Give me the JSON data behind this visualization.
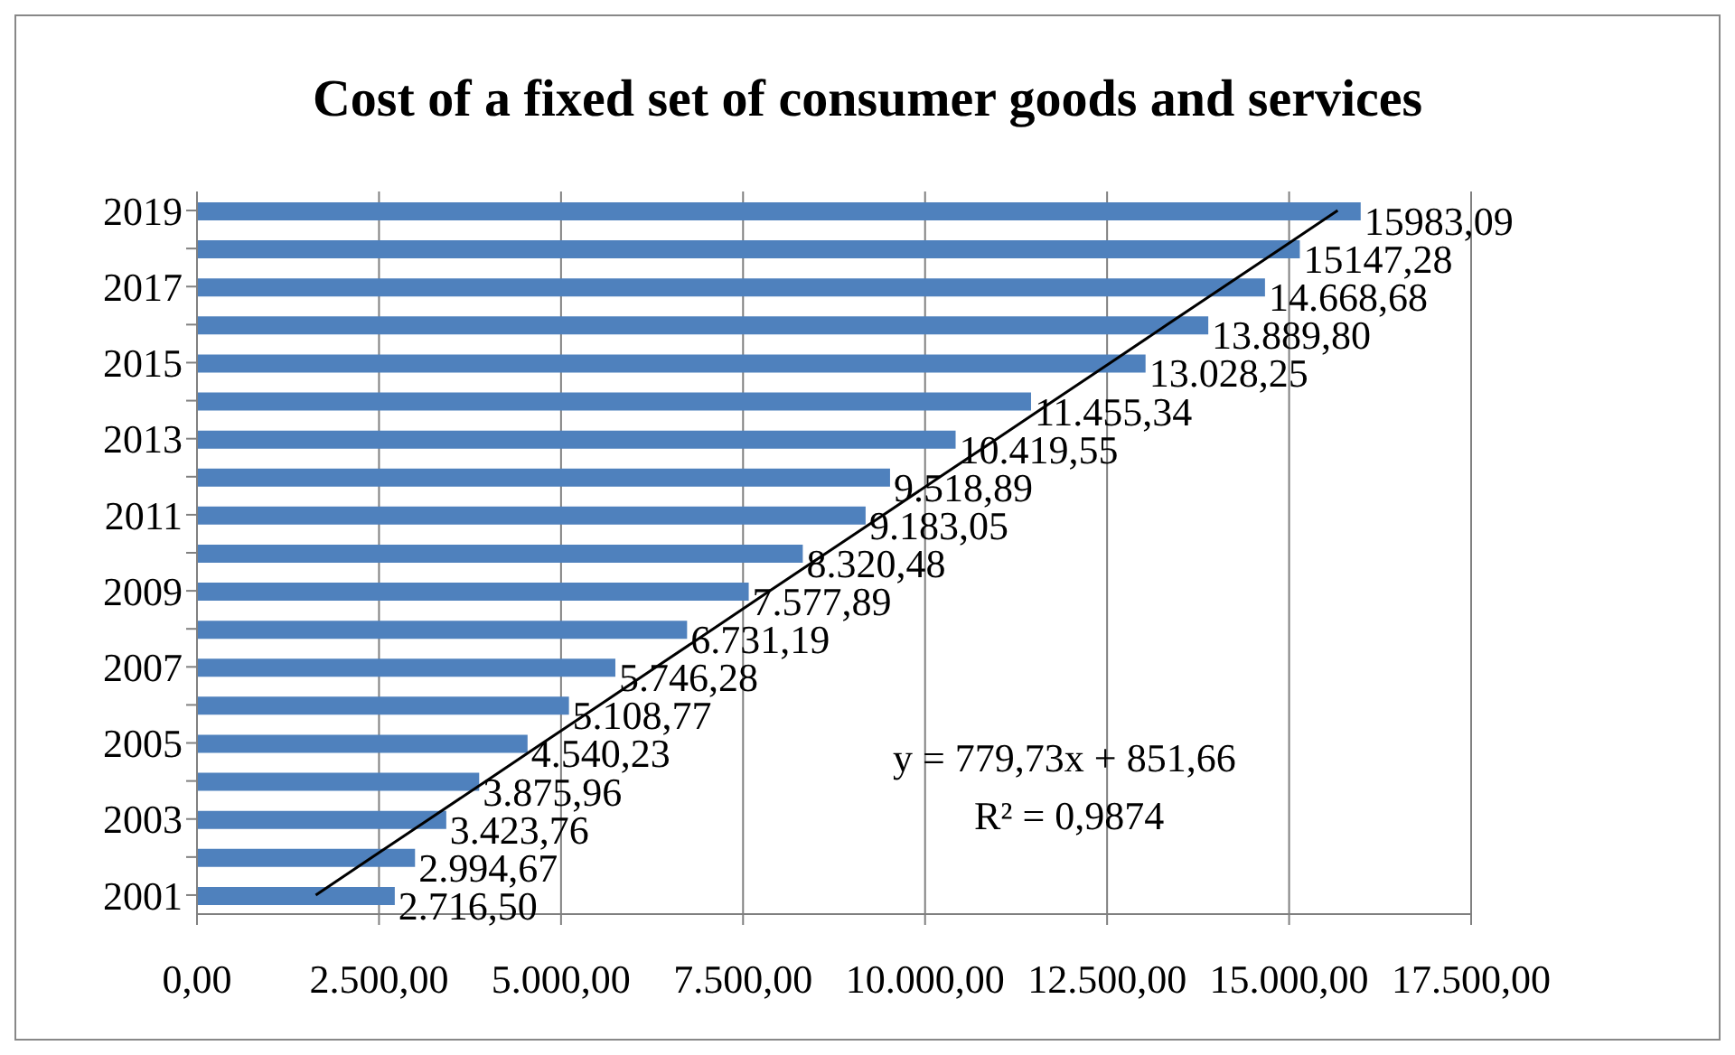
{
  "chart_data": {
    "type": "bar",
    "orientation": "horizontal",
    "title": "Cost of a fixed set of consumer goods and services",
    "categories": [
      "2019",
      null,
      "2017",
      null,
      "2015",
      null,
      "2013",
      null,
      "2011",
      null,
      "2009",
      null,
      "2007",
      null,
      "2005",
      null,
      "2003",
      null,
      "2001"
    ],
    "series": [
      {
        "color": "#4f81bd",
        "values": [
          15983.09,
          15147.28,
          14668.68,
          13889.8,
          13028.25,
          11455.34,
          10419.55,
          9518.89,
          9183.05,
          8320.48,
          7577.89,
          6731.19,
          5746.28,
          5108.77,
          4540.23,
          3875.96,
          3423.76,
          2994.67,
          2716.5
        ],
        "value_labels": [
          "15983,09",
          "15147,28",
          "14.668,68",
          "13.889,80",
          "13.028,25",
          "11.455,34",
          "10.419,55",
          "9.518,89",
          "9.183,05",
          "8.320,48",
          "7.577,89",
          "6.731,19",
          "5.746,28",
          "5.108,77",
          "4.540,23",
          "3.875,96",
          "3.423,76",
          "2.994,67",
          "2.716,50"
        ]
      },
      {
        "type": "line",
        "color": "#000000",
        "values": [
          15667,
          14887,
          14107,
          13327,
          12548,
          11768,
          10988,
          10208,
          9429,
          8649,
          7869,
          7090,
          6310,
          5530,
          4750,
          3971,
          3191,
          2411,
          1631
        ]
      }
    ],
    "xlim": [
      0,
      17500
    ],
    "xticks": [
      {
        "value": 0,
        "label": "0,00"
      },
      {
        "value": 2500,
        "label": "2.500,00"
      },
      {
        "value": 5000,
        "label": "5.000,00"
      },
      {
        "value": 7500,
        "label": "7.500,00"
      },
      {
        "value": 10000,
        "label": "10.000,00"
      },
      {
        "value": 12500,
        "label": "12.500,00"
      },
      {
        "value": 15000,
        "label": "15.000,00"
      },
      {
        "value": 17500,
        "label": "17.500,00"
      }
    ],
    "grid": "x",
    "annotations": [
      "y = 779,73x + 851,66",
      "R² = 0,9874"
    ]
  }
}
